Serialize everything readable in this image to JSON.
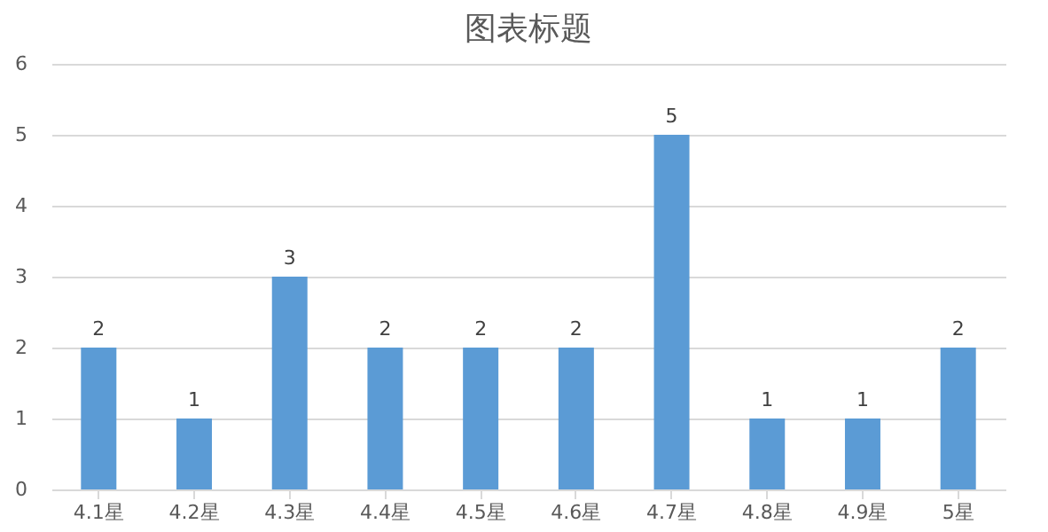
{
  "chart_data": {
    "type": "bar",
    "title": "图表标题",
    "categories": [
      "4.1星",
      "4.2星",
      "4.3星",
      "4.4星",
      "4.5星",
      "4.6星",
      "4.7星",
      "4.8星",
      "4.9星",
      "5星"
    ],
    "values": [
      2,
      1,
      3,
      2,
      2,
      2,
      5,
      1,
      1,
      2
    ],
    "color": "#5b9bd5",
    "ylim": [
      0,
      6
    ],
    "yticks": [
      0,
      1,
      2,
      3,
      4,
      5,
      6
    ],
    "grid": "y",
    "data_labels": true
  }
}
